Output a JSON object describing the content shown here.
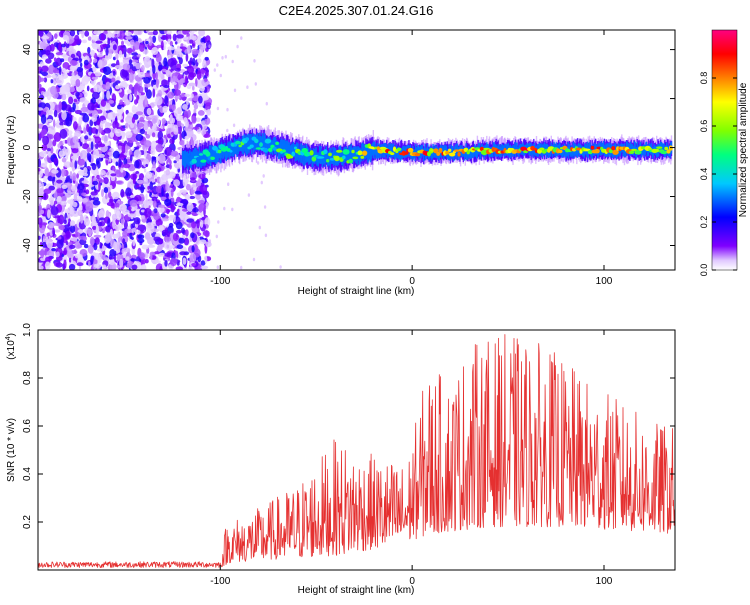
{
  "chart_data": [
    {
      "type": "heatmap",
      "title": "C2E4.2025.307.01.24.G16",
      "xlabel": "Height of straight line (km)",
      "ylabel": "Frequency (Hz)",
      "xlim": [
        -195,
        137
      ],
      "ylim": [
        -50,
        48
      ],
      "xticks": [
        -100,
        0,
        100
      ],
      "yticks": [
        -40,
        -20,
        0,
        20,
        40
      ],
      "noise_region_km": [
        -195,
        -106
      ],
      "signal_start_km": -120,
      "signal_track": [
        {
          "x": -120,
          "y": -5,
          "amp": 0.35
        },
        {
          "x": -110,
          "y": -4,
          "amp": 0.45
        },
        {
          "x": -100,
          "y": -2,
          "amp": 0.55
        },
        {
          "x": -90,
          "y": 1,
          "amp": 0.55
        },
        {
          "x": -80,
          "y": 2,
          "amp": 0.5
        },
        {
          "x": -70,
          "y": 0,
          "amp": 0.55
        },
        {
          "x": -60,
          "y": -2,
          "amp": 0.6
        },
        {
          "x": -50,
          "y": -4,
          "amp": 0.55
        },
        {
          "x": -40,
          "y": -4,
          "amp": 0.6
        },
        {
          "x": -30,
          "y": -3,
          "amp": 0.6
        },
        {
          "x": -20,
          "y": -1,
          "amp": 0.85
        },
        {
          "x": 0,
          "y": -2,
          "amp": 0.9
        },
        {
          "x": 20,
          "y": -2,
          "amp": 0.85
        },
        {
          "x": 40,
          "y": -1,
          "amp": 0.85
        },
        {
          "x": 60,
          "y": -1,
          "amp": 0.9
        },
        {
          "x": 80,
          "y": -1,
          "amp": 0.85
        },
        {
          "x": 100,
          "y": -1,
          "amp": 0.9
        },
        {
          "x": 120,
          "y": -1,
          "amp": 0.85
        },
        {
          "x": 135,
          "y": -1,
          "amp": 0.8
        }
      ],
      "colorbar": {
        "label": "Normalized spectral amplitude",
        "range": [
          0,
          1
        ],
        "ticks": [
          "0.0",
          "0.2",
          "0.4",
          "0.6",
          "0.8"
        ],
        "tick_values": [
          0.0,
          0.2,
          0.4,
          0.6,
          0.8
        ],
        "colors": [
          "#ffffff",
          "#7f00ff",
          "#0000ff",
          "#00c8ff",
          "#00ff80",
          "#80ff00",
          "#ffff00",
          "#ff8000",
          "#ff0000",
          "#ff0080"
        ]
      }
    },
    {
      "type": "line",
      "xlabel": "Height of straight line (km)",
      "ylabel": "SNR (10 * v/v)",
      "multiplier_base": "(x10",
      "multiplier_exp": "4",
      "multiplier_close": ")",
      "xlim": [
        -195,
        137
      ],
      "ylim": [
        0,
        1.0
      ],
      "xticks": [
        -100,
        0,
        100
      ],
      "yticks": [
        0.2,
        0.4,
        0.6,
        0.8,
        1.0
      ],
      "series": [
        {
          "name": "SNR",
          "color": "#e53030",
          "envelope": [
            {
              "x": -195,
              "y": 0.04
            },
            {
              "x": -100,
              "y": 0.04
            },
            {
              "x": -97,
              "y": 0.2
            },
            {
              "x": -80,
              "y": 0.26
            },
            {
              "x": -60,
              "y": 0.36
            },
            {
              "x": -40,
              "y": 0.55
            },
            {
              "x": -20,
              "y": 0.48
            },
            {
              "x": -3,
              "y": 0.44
            },
            {
              "x": 8,
              "y": 0.85
            },
            {
              "x": 20,
              "y": 0.8
            },
            {
              "x": 30,
              "y": 0.95
            },
            {
              "x": 50,
              "y": 0.99
            },
            {
              "x": 70,
              "y": 0.94
            },
            {
              "x": 90,
              "y": 0.8
            },
            {
              "x": 110,
              "y": 0.7
            },
            {
              "x": 125,
              "y": 0.62
            },
            {
              "x": 137,
              "y": 0.6
            }
          ],
          "baseline": [
            {
              "x": -195,
              "y": 0.01
            },
            {
              "x": -100,
              "y": 0.01
            },
            {
              "x": -95,
              "y": 0.03
            },
            {
              "x": -80,
              "y": 0.04
            },
            {
              "x": -60,
              "y": 0.05
            },
            {
              "x": -40,
              "y": 0.06
            },
            {
              "x": -10,
              "y": 0.1
            },
            {
              "x": 10,
              "y": 0.15
            },
            {
              "x": 40,
              "y": 0.18
            },
            {
              "x": 80,
              "y": 0.18
            },
            {
              "x": 137,
              "y": 0.15
            }
          ]
        }
      ]
    }
  ]
}
